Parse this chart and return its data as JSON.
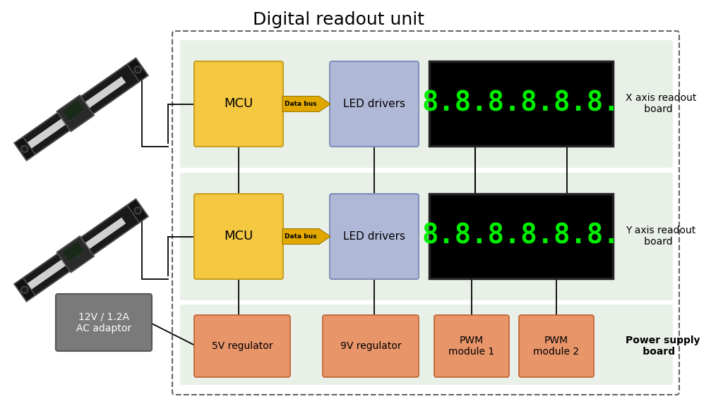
{
  "title": "Digital readout unit",
  "title_fontsize": 18,
  "bg_color": "#ffffff",
  "green_bg": "#e8f0e8",
  "mcu_color": "#f5c842",
  "mcu_edge": "#c8a020",
  "led_color": "#b0b8d8",
  "led_edge": "#8090b8",
  "display_bg": "#000000",
  "display_fg": "#00ee00",
  "power_color": "#e8956a",
  "power_edge": "#c06030",
  "ac_color": "#7a7a7a",
  "ac_edge": "#555555",
  "arrow_color": "#e0a800",
  "line_color": "#000000",
  "x_label": "X axis readout\n      board",
  "y_label": "Y axis readout\n      board",
  "ps_label": "Power supply\n     board",
  "mcu_label": "MCU",
  "led_label": "LED drivers",
  "databus_label": "Data bus",
  "reg5_label": "5V regulator",
  "reg9_label": "9V regulator",
  "pwm1_label": "PWM\nmodule 1",
  "pwm2_label": "PWM\nmodule 2",
  "ac_label": "12V / 1.2A\nAC adaptor",
  "display_char": "8.8.8.8.8.8.",
  "font_size_box": 11,
  "font_size_label": 10,
  "font_size_databus": 6.5
}
